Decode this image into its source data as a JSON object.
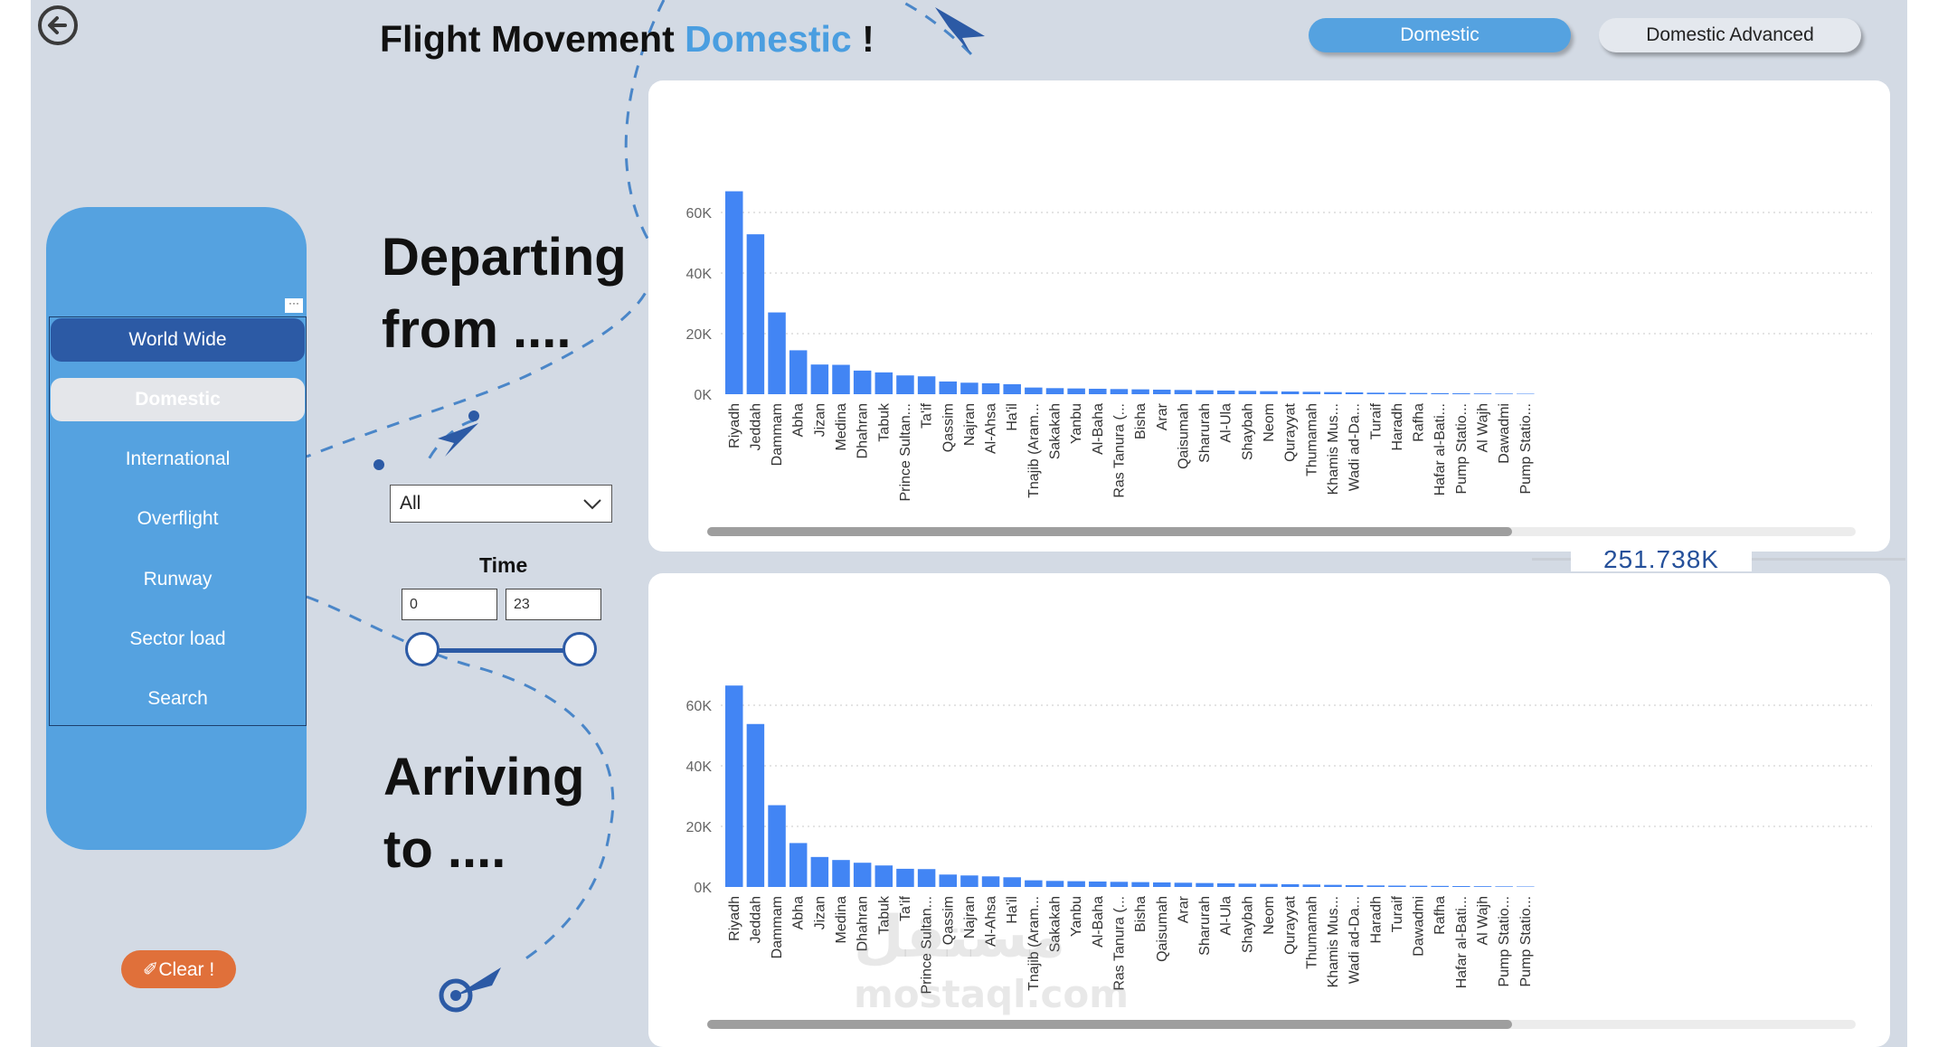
{
  "header": {
    "title_prefix": "Flight Movement ",
    "title_accent": "Domestic",
    "title_suffix": " !"
  },
  "tabs": [
    {
      "label": "Domestic",
      "active": true
    },
    {
      "label": "Domestic Advanced",
      "active": false
    }
  ],
  "nav": {
    "items": [
      "World Wide",
      "Domestic",
      "International",
      "Overflight",
      "Runway",
      "Sector load",
      "Search"
    ],
    "more": "···"
  },
  "labels": {
    "departing_line1": "Departing",
    "departing_line2": "from ....",
    "arriving_line1": "Arriving",
    "arriving_line2": "to ...."
  },
  "filters": {
    "dropdown_value": "All",
    "time_label": "Time",
    "time_from": "0",
    "time_to": "23"
  },
  "clear_label": "✐Clear !",
  "total": "251.738K",
  "watermark": {
    "line1": "مستقل",
    "line2": "mostaql.com"
  },
  "colors": {
    "bar": "#4285f4",
    "accent": "#4a9ee0",
    "panel": "#55a2e0",
    "selected": "#2c5aa5",
    "clear": "#e0703a"
  },
  "chart_data": [
    {
      "type": "bar",
      "name": "departing",
      "ylim": [
        0,
        70000
      ],
      "yticks": [
        "0K",
        "20K",
        "40K",
        "60K"
      ],
      "categories": [
        "Riyadh",
        "Jeddah",
        "Dammam",
        "Abha",
        "Jizan",
        "Medina",
        "Dhahran",
        "Tabuk",
        "Prince Sultan...",
        "Ta'if",
        "Qassim",
        "Najran",
        "Al-Ahsa",
        "Ha'il",
        "Tnajib (Aram...",
        "Sakakah",
        "Yanbu",
        "Al-Baha",
        "Ras Tanura (...",
        "Bisha",
        "Arar",
        "Qaisumah",
        "Sharurah",
        "Al-Ula",
        "Shaybah",
        "Neom",
        "Qurayyat",
        "Thumamah",
        "Khamis Mus...",
        "Wadi ad-Da...",
        "Turaif",
        "Haradh",
        "Rafha",
        "Hafar al-Bati...",
        "Pump Statio...",
        "Al Wajh",
        "Dawadmi",
        "Pump Statio..."
      ],
      "values": [
        67000,
        52800,
        27000,
        14500,
        9800,
        9700,
        7800,
        7200,
        6200,
        5900,
        4200,
        3800,
        3600,
        3300,
        2200,
        2000,
        1900,
        1800,
        1700,
        1600,
        1500,
        1400,
        1300,
        1200,
        1100,
        1000,
        900,
        800,
        700,
        600,
        500,
        450,
        400,
        350,
        300,
        250,
        200,
        150
      ]
    },
    {
      "type": "bar",
      "name": "arriving",
      "ylim": [
        0,
        70000
      ],
      "yticks": [
        "0K",
        "20K",
        "40K",
        "60K"
      ],
      "categories": [
        "Riyadh",
        "Jeddah",
        "Dammam",
        "Abha",
        "Jizan",
        "Medina",
        "Dhahran",
        "Tabuk",
        "Ta'if",
        "Prince Sultan...",
        "Qassim",
        "Najran",
        "Al-Ahsa",
        "Ha'il",
        "Tnajib (Aram...",
        "Sakakah",
        "Yanbu",
        "Al-Baha",
        "Ras Tanura (...",
        "Bisha",
        "Qaisumah",
        "Arar",
        "Sharurah",
        "Al-Ula",
        "Shaybah",
        "Neom",
        "Qurayyat",
        "Thumamah",
        "Khamis Mus...",
        "Wadi ad-Da...",
        "Haradh",
        "Turaif",
        "Dawadmi",
        "Rafha",
        "Hafar al-Bati...",
        "Al Wajh",
        "Pump Statio...",
        "Pump Statio..."
      ],
      "values": [
        66500,
        53800,
        27000,
        14500,
        9900,
        8900,
        8000,
        7100,
        6000,
        5900,
        4100,
        3800,
        3500,
        3200,
        2200,
        2000,
        1900,
        1800,
        1700,
        1600,
        1500,
        1400,
        1300,
        1200,
        1100,
        1000,
        900,
        800,
        700,
        600,
        500,
        450,
        400,
        350,
        300,
        250,
        200,
        150
      ]
    }
  ]
}
